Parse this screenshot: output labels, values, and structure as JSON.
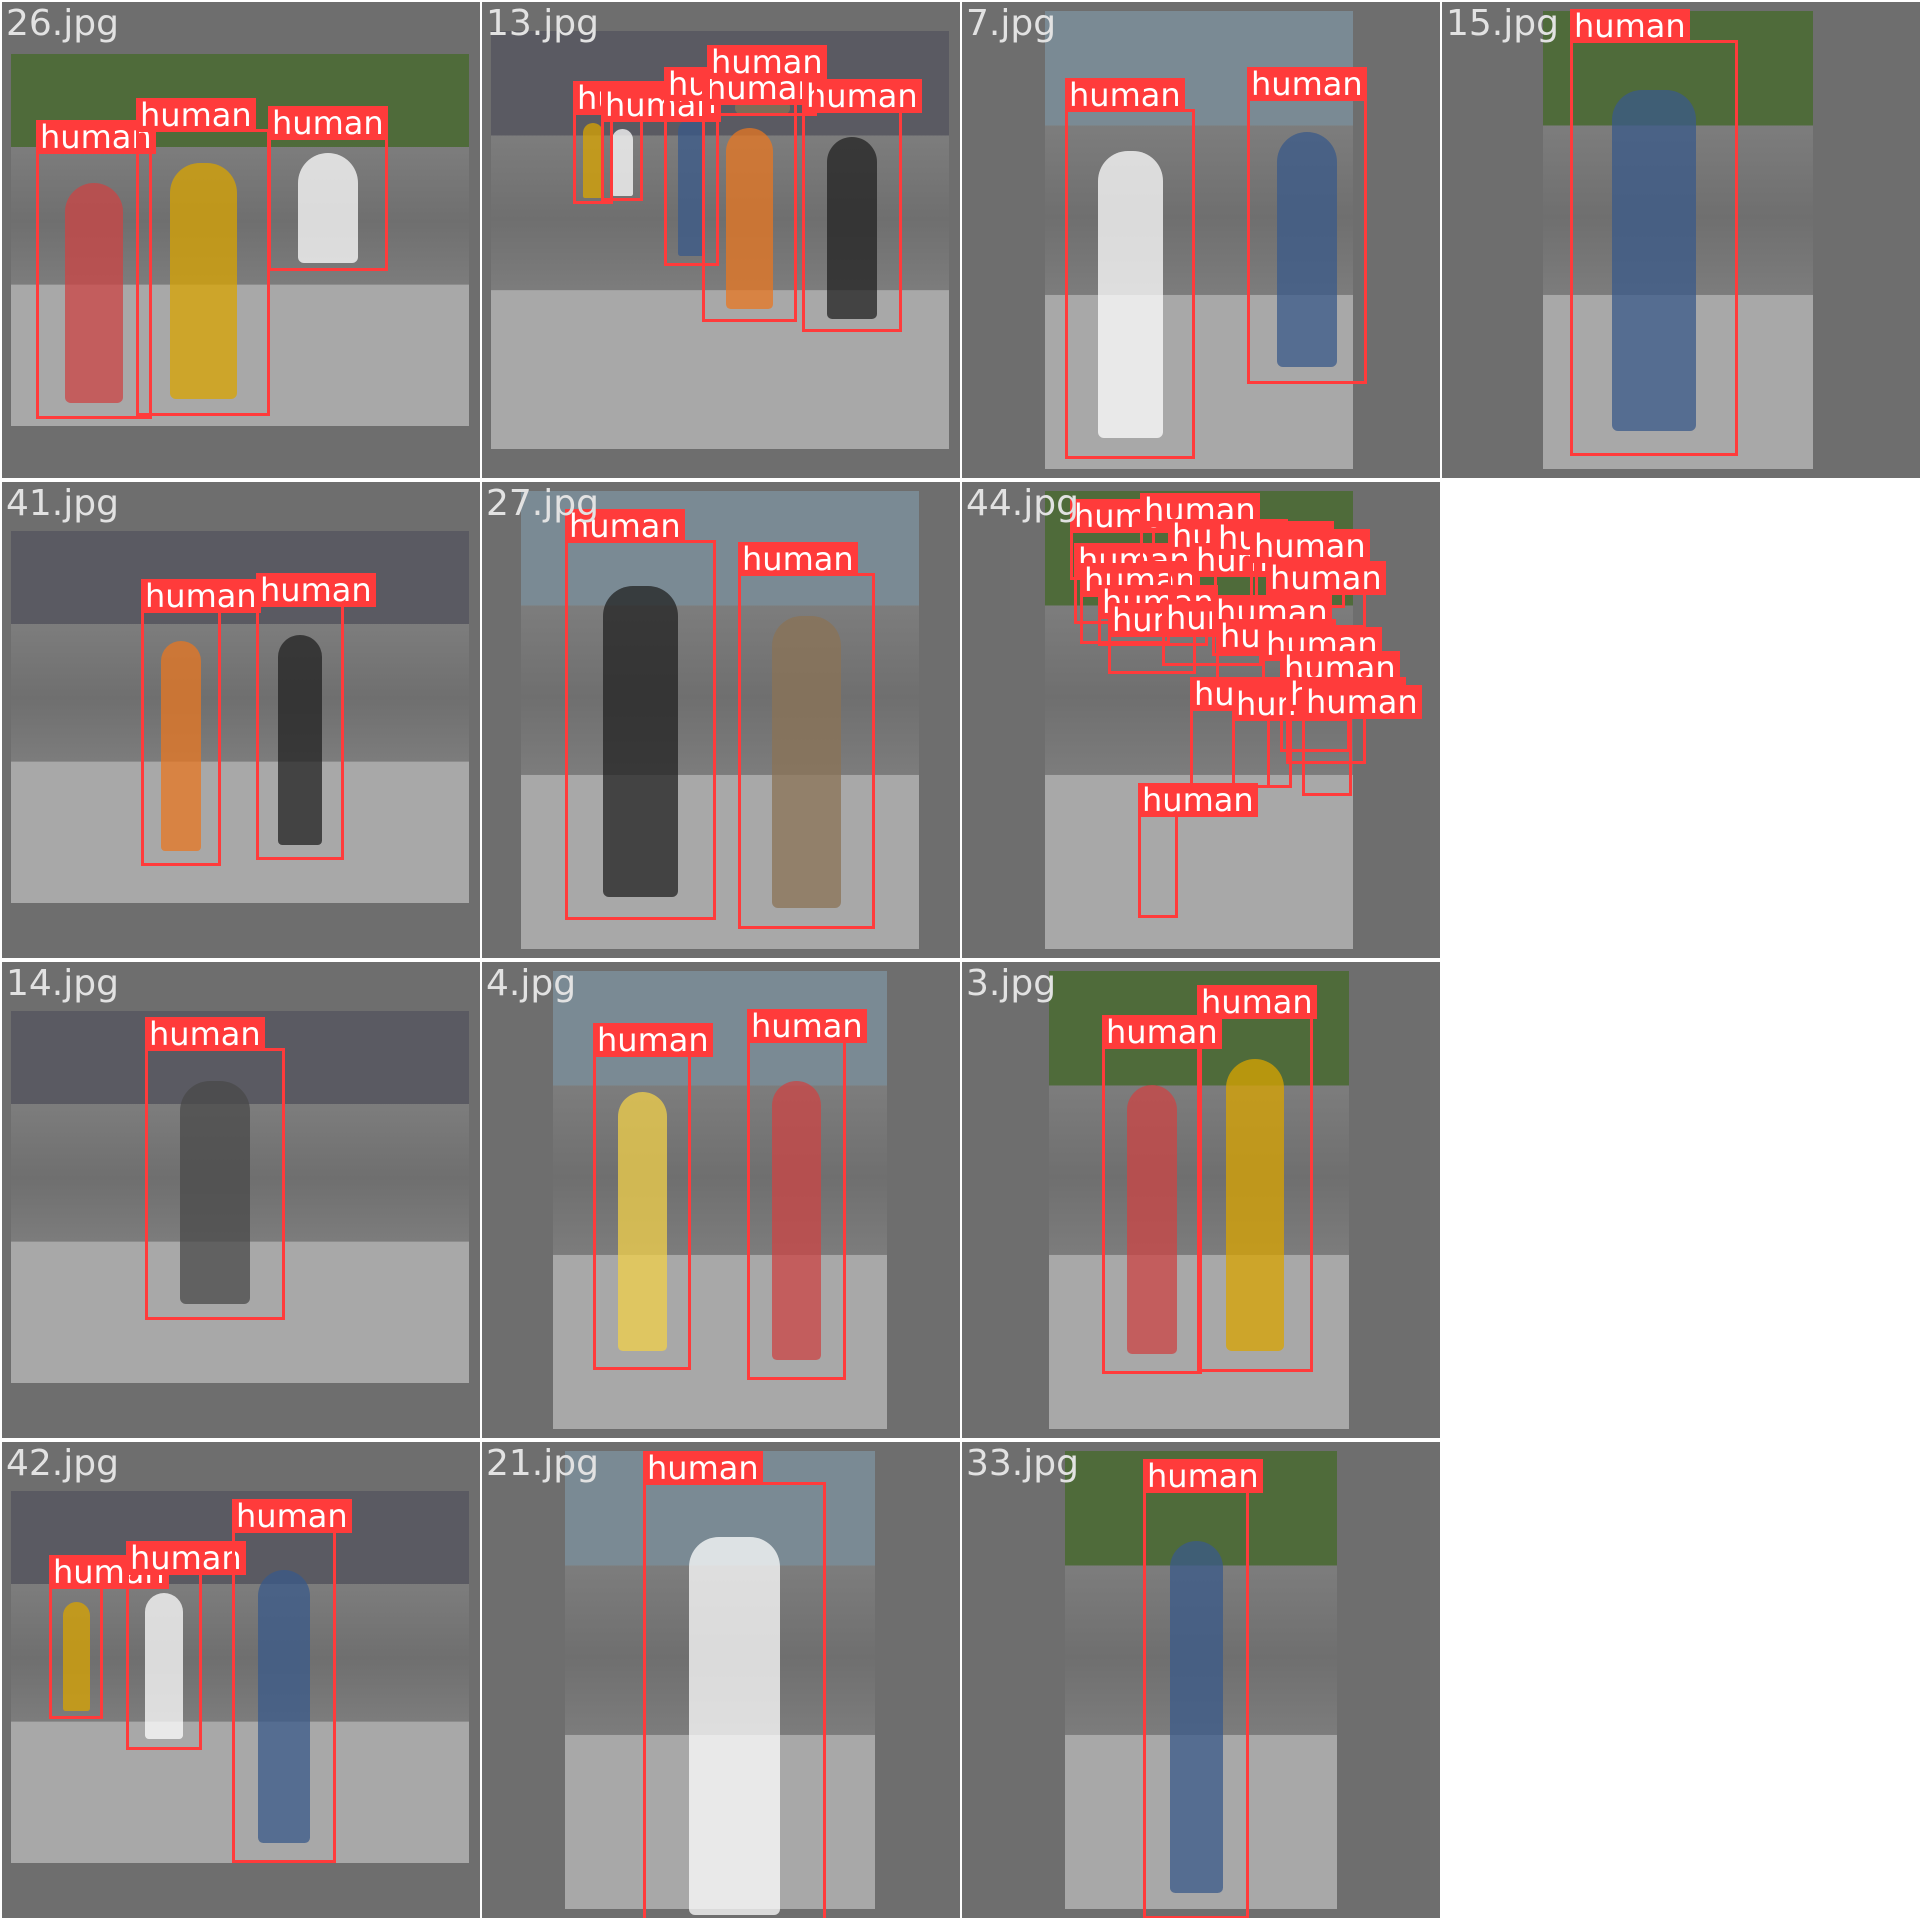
{
  "tiles": [
    {
      "filename": "26.jpg",
      "detections": [
        {
          "label": "human"
        },
        {
          "label": "human"
        },
        {
          "label": "human"
        }
      ]
    },
    {
      "filename": "13.jpg",
      "detections": [
        {
          "label": "human"
        },
        {
          "label": "human"
        },
        {
          "label": "human"
        },
        {
          "label": "human"
        },
        {
          "label": "human"
        },
        {
          "label": "human"
        }
      ]
    },
    {
      "filename": "7.jpg",
      "detections": [
        {
          "label": "human"
        },
        {
          "label": "human"
        }
      ]
    },
    {
      "filename": "15.jpg",
      "detections": [
        {
          "label": "human"
        }
      ]
    },
    {
      "filename": "41.jpg",
      "detections": [
        {
          "label": "human"
        },
        {
          "label": "human"
        }
      ]
    },
    {
      "filename": "27.jpg",
      "detections": [
        {
          "label": "human"
        },
        {
          "label": "human"
        }
      ]
    },
    {
      "filename": "44.jpg",
      "detections": [
        {
          "label": "human"
        },
        {
          "label": "human"
        },
        {
          "label": "human"
        },
        {
          "label": "human"
        },
        {
          "label": "human"
        },
        {
          "label": "human"
        },
        {
          "label": "human"
        },
        {
          "label": "human"
        },
        {
          "label": "human"
        },
        {
          "label": "human"
        },
        {
          "label": "human"
        },
        {
          "label": "human"
        },
        {
          "label": "human"
        },
        {
          "label": "human"
        },
        {
          "label": "human"
        },
        {
          "label": "human"
        },
        {
          "label": "human"
        },
        {
          "label": "human"
        },
        {
          "label": "human"
        },
        {
          "label": "human"
        },
        {
          "label": "human"
        }
      ]
    },
    {
      "filename": "14.jpg",
      "detections": [
        {
          "label": "human"
        }
      ]
    },
    {
      "filename": "4.jpg",
      "detections": [
        {
          "label": "human"
        },
        {
          "label": "human"
        }
      ]
    },
    {
      "filename": "3.jpg",
      "detections": [
        {
          "label": "human"
        },
        {
          "label": "human"
        }
      ]
    },
    {
      "filename": "42.jpg",
      "detections": [
        {
          "label": "human"
        },
        {
          "label": "human"
        },
        {
          "label": "human"
        }
      ]
    },
    {
      "filename": "21.jpg",
      "detections": [
        {
          "label": "human"
        }
      ]
    },
    {
      "filename": "33.jpg",
      "detections": [
        {
          "label": "human"
        }
      ]
    }
  ],
  "colors": {
    "box": "#ff3b3b",
    "tile_bg": "#6e6e6e",
    "label_text": "#e2e2e2",
    "page_bg": "#ffffff"
  }
}
